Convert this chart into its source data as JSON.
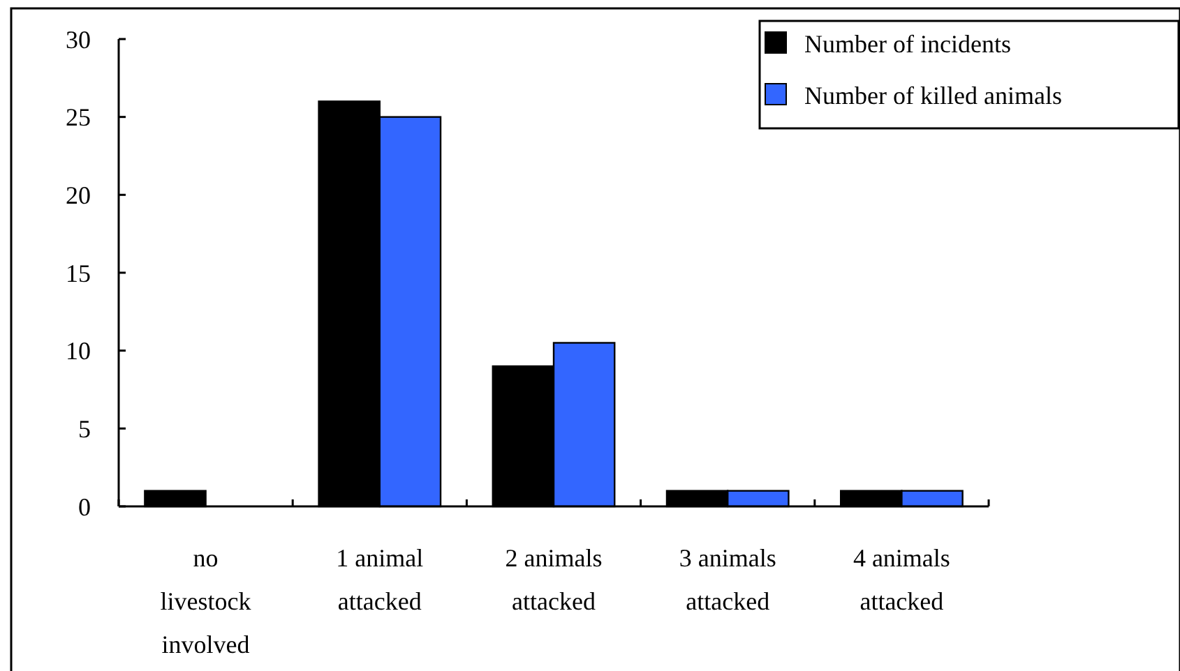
{
  "chart_data": {
    "type": "bar",
    "categories": [
      "no livestock involved",
      "1 animal attacked",
      "2 animals attacked",
      "3 animals attacked",
      "4 animals attacked"
    ],
    "series": [
      {
        "name": "Number of incidents",
        "color": "#000000",
        "values": [
          1,
          26,
          9,
          1,
          1
        ]
      },
      {
        "name": "Number of killed animals",
        "color": "#3366ff",
        "values": [
          0,
          25,
          10.5,
          1,
          1
        ]
      }
    ],
    "ylim": [
      0,
      30
    ],
    "yticks": [
      0,
      5,
      10,
      15,
      20,
      25,
      30
    ],
    "grid": false,
    "legend": "top right"
  }
}
